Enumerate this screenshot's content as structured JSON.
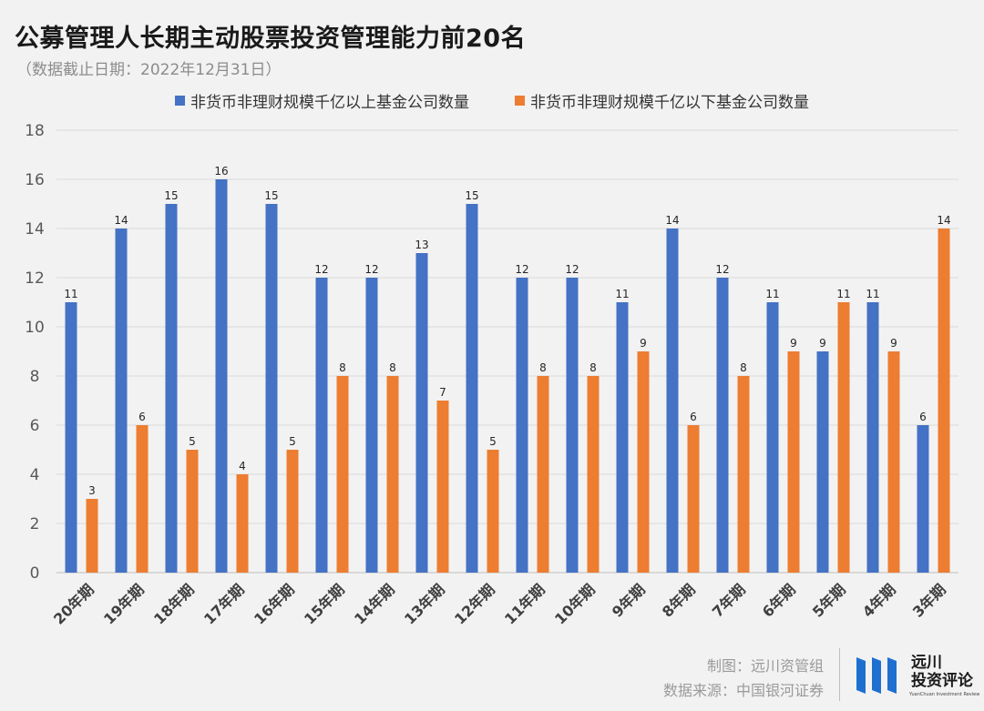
{
  "chart_data": {
    "type": "bar",
    "title": "公募管理人长期主动股票投资管理能力前20名",
    "subtitle": "（数据截止日期：2022年12月31日）",
    "categories": [
      "20年期",
      "19年期",
      "18年期",
      "17年期",
      "16年期",
      "15年期",
      "14年期",
      "13年期",
      "12年期",
      "11年期",
      "10年期",
      "9年期",
      "8年期",
      "7年期",
      "6年期",
      "5年期",
      "4年期",
      "3年期"
    ],
    "series": [
      {
        "name": "非货币非理财规模千亿以上基金公司数量",
        "color": "#4472c4",
        "values": [
          11,
          14,
          15,
          16,
          15,
          12,
          12,
          13,
          15,
          12,
          12,
          11,
          14,
          12,
          11,
          9,
          11,
          6
        ]
      },
      {
        "name": "非货币非理财规模千亿以下基金公司数量",
        "color": "#ed7d31",
        "values": [
          3,
          6,
          5,
          4,
          5,
          8,
          8,
          7,
          5,
          8,
          8,
          9,
          6,
          8,
          9,
          11,
          9,
          14
        ]
      }
    ],
    "ylim": [
      0,
      18
    ],
    "yticks": [
      0,
      2,
      4,
      6,
      8,
      10,
      12,
      14,
      16,
      18
    ],
    "xlabel": "",
    "ylabel": "",
    "grid": true,
    "legend": "top-center",
    "data_labels": true
  },
  "footer": {
    "maker": "制图：远川资管组",
    "source": "数据来源：中国银河证券"
  },
  "brand": {
    "name_line1": "远川",
    "name_line2": "投资评论",
    "name_en": "YuanChuan Investment Review",
    "color": "#1f6fd1"
  }
}
